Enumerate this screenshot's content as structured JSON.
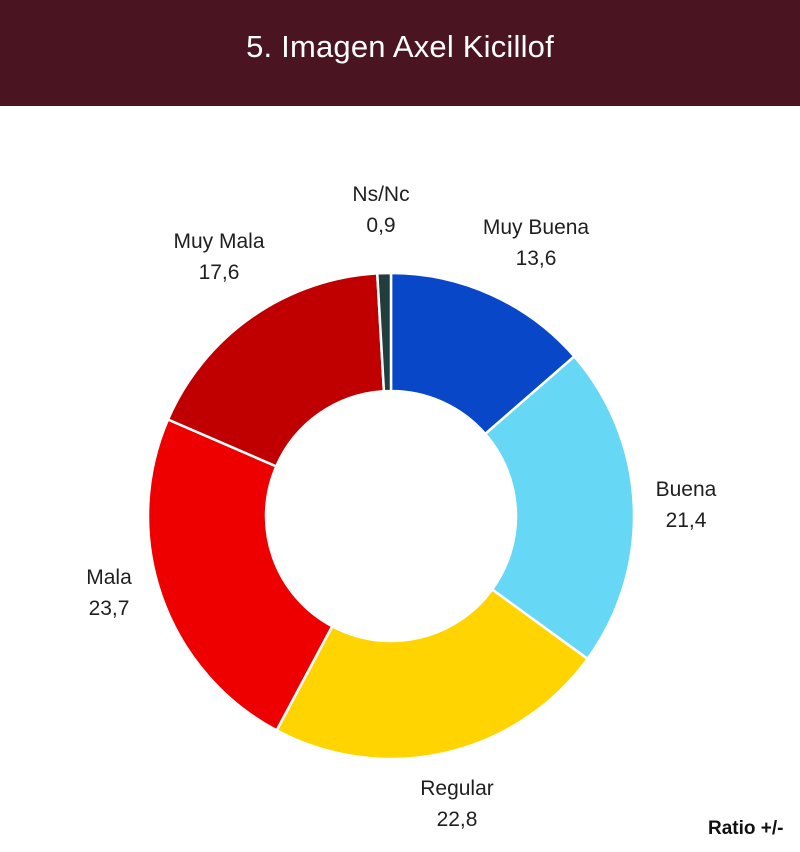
{
  "header": {
    "title": "5. Imagen Axel Kicillof"
  },
  "chart_data": {
    "type": "pie",
    "variant": "donut",
    "title": "5. Imagen Axel Kicillof",
    "categories": [
      "Muy Buena",
      "Buena",
      "Regular",
      "Mala",
      "Muy Mala",
      "Ns/Nc"
    ],
    "values": [
      13.6,
      21.4,
      22.8,
      23.7,
      17.6,
      0.9
    ],
    "value_labels": [
      "13,6",
      "21,4",
      "22,8",
      "23,7",
      "17,6",
      "0,9"
    ],
    "colors": [
      "#0747c8",
      "#66d7f4",
      "#ffd400",
      "#ee0000",
      "#c00000",
      "#213d3d"
    ],
    "legend": "none",
    "data_labels": "outside"
  },
  "footer": {
    "note": "Ratio +/-"
  }
}
